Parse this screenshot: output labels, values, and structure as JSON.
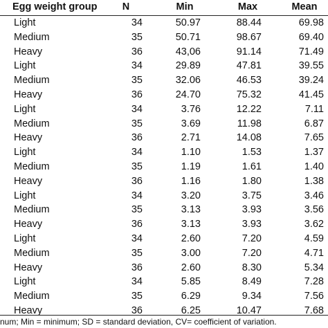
{
  "table": {
    "headers": [
      "Egg weight group",
      "N",
      "Min",
      "Max",
      "Mean"
    ],
    "rows": [
      [
        "Light",
        "34",
        "50.97",
        "88.44",
        "69.98"
      ],
      [
        "Medium",
        "35",
        "50.71",
        "98.67",
        "69.40"
      ],
      [
        "Heavy",
        "36",
        "43,06",
        "91.14",
        "71.49"
      ],
      [
        "Light",
        "34",
        "29.89",
        "47.81",
        "39.55"
      ],
      [
        "Medium",
        "35",
        "32.06",
        "46.53",
        "39.24"
      ],
      [
        "Heavy",
        "36",
        "24.70",
        "75.32",
        "41.45"
      ],
      [
        "Light",
        "34",
        "3.76",
        "12.22",
        "7.11"
      ],
      [
        "Medium",
        "35",
        "3.69",
        "11.98",
        "6.87"
      ],
      [
        "Heavy",
        "36",
        "2.71",
        "14.08",
        "7.65"
      ],
      [
        "Light",
        "34",
        "1.10",
        "1.53",
        "1.37"
      ],
      [
        "Medium",
        "35",
        "1.19",
        "1.61",
        "1.40"
      ],
      [
        "Heavy",
        "36",
        "1.16",
        "1.80",
        "1.38"
      ],
      [
        "Light",
        "34",
        "3.20",
        "3.75",
        "3.46"
      ],
      [
        "Medium",
        "35",
        "3.13",
        "3.93",
        "3.56"
      ],
      [
        "Heavy",
        "36",
        "3.13",
        "3.93",
        "3.62"
      ],
      [
        "Light",
        "34",
        "2.60",
        "7.20",
        "4.59"
      ],
      [
        "Medium",
        "35",
        "3.00",
        "7.20",
        "4.71"
      ],
      [
        "Heavy",
        "36",
        "2.60",
        "8.30",
        "5.34"
      ],
      [
        "Light",
        "34",
        "5.85",
        "8.49",
        "7.28"
      ],
      [
        "Medium",
        "35",
        "6.29",
        "9.34",
        "7.56"
      ],
      [
        "Heavy",
        "36",
        "6.25",
        "10.47",
        "7.68"
      ]
    ]
  },
  "footnote": "num; Min = minimum; SD = standard deviation, CV= coefficient of variation."
}
